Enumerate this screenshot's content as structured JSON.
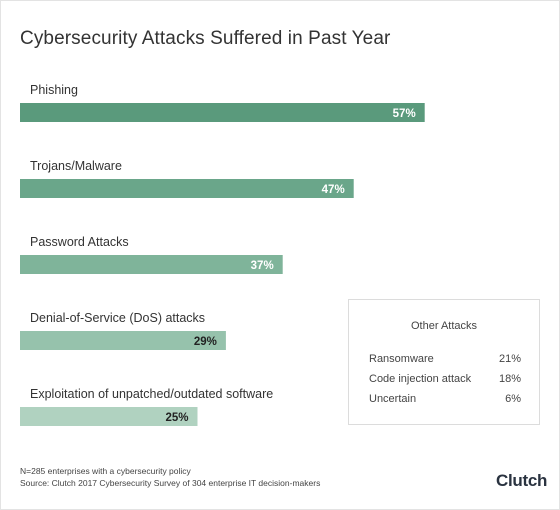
{
  "title": "Cybersecurity Attacks Suffered in Past Year",
  "chart_data": {
    "type": "bar",
    "orientation": "horizontal",
    "title": "Cybersecurity Attacks Suffered in Past Year",
    "categories": [
      "Phishing",
      "Trojans/Malware",
      "Password Attacks",
      "Denial-of-Service (DoS) attacks",
      "Exploitation of unpatched/outdated software"
    ],
    "values": [
      57,
      47,
      37,
      29,
      25
    ],
    "value_labels": [
      "57%",
      "47%",
      "37%",
      "29%",
      "25%"
    ],
    "bar_colors": [
      "#5a9a7c",
      "#6aa68a",
      "#7fb49a",
      "#96c2ac",
      "#b0d2c0"
    ],
    "xlim": [
      0,
      100
    ],
    "grid": false,
    "legend": "none"
  },
  "other_attacks": {
    "title": "Other Attacks",
    "rows": [
      {
        "label": "Ransomware",
        "value": "21%"
      },
      {
        "label": "Code injection attack",
        "value": "18%"
      },
      {
        "label": "Uncertain",
        "value": "6%"
      }
    ]
  },
  "footnotes": {
    "n_note": "N=285 enterprises with a cybersecurity policy",
    "source": "Source: Clutch 2017 Cybersecurity Survey of 304 enterprise IT decision-makers"
  },
  "logo_text": "Clutch"
}
